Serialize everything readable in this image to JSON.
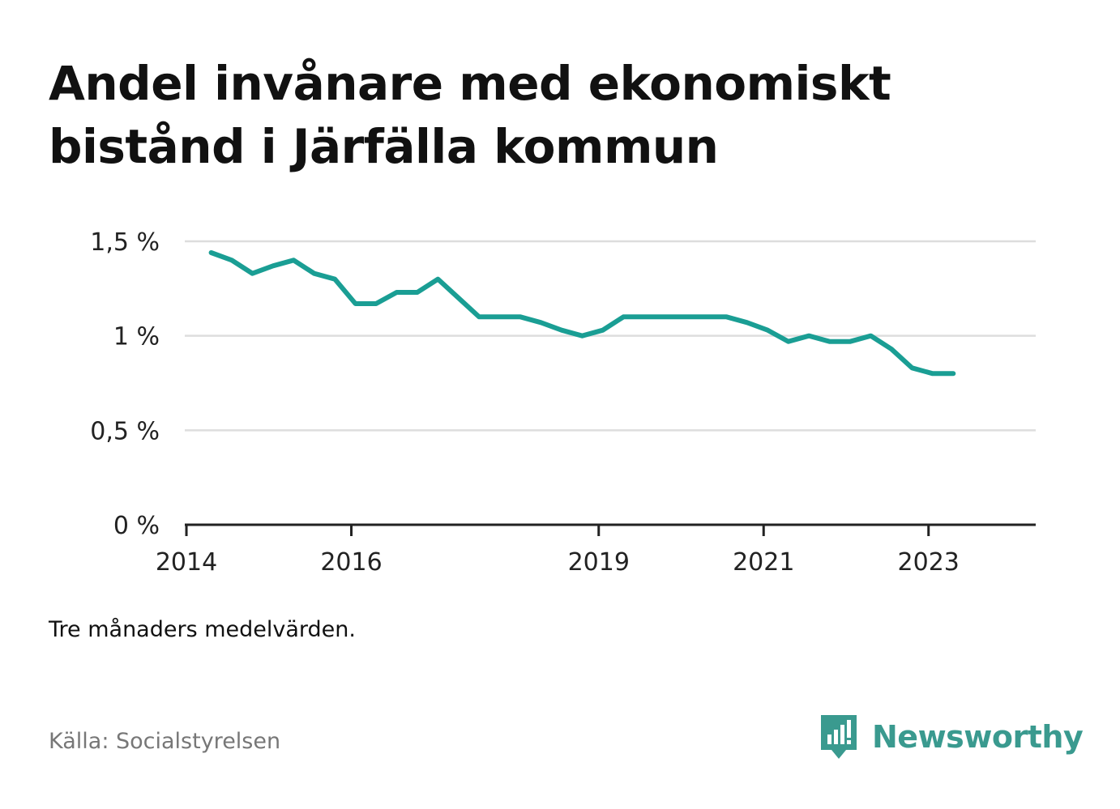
{
  "title": "Andel invånare med ekonomiskt bistånd i Järfälla kommun",
  "note": "Tre månaders medelvärden.",
  "source": "Källa: Socialstyrelsen",
  "brand": {
    "name": "Newsworthy",
    "logo_icon": "newsworthy-logo-icon"
  },
  "colors": {
    "line": "#1a9e94",
    "grid": "#dddddd",
    "axis": "#222222",
    "brand": "#3a9a8f"
  },
  "chart_data": {
    "type": "line",
    "title": "Andel invånare med ekonomiskt bistånd i Järfälla kommun",
    "xlabel": "",
    "ylabel": "",
    "x_tick_values": [
      2014.0,
      2016.0,
      2019.0,
      2021.0,
      2023.0
    ],
    "x_tick_labels": [
      "2014",
      "2016",
      "2019",
      "2021",
      "2023"
    ],
    "y_tick_values": [
      0,
      0.5,
      1,
      1.5
    ],
    "y_tick_labels": [
      "0 %",
      "0,5 %",
      "1 %",
      "1,5 %"
    ],
    "xlim": [
      2013.98,
      2024.3
    ],
    "ylim": [
      0,
      1.5
    ],
    "grid": true,
    "legend": "none",
    "series": [
      {
        "x": [
          2014.3,
          2014.55,
          2014.8,
          2015.05,
          2015.3,
          2015.55,
          2015.8,
          2016.05,
          2016.3,
          2016.55,
          2016.8,
          2017.05,
          2017.3,
          2017.55,
          2017.8,
          2018.05,
          2018.3,
          2018.55,
          2018.8,
          2019.05,
          2019.3,
          2019.55,
          2019.8,
          2020.05,
          2020.3,
          2020.55,
          2020.8,
          2021.05,
          2021.3,
          2021.55,
          2021.8,
          2022.05,
          2022.3,
          2022.55,
          2022.8,
          2023.05,
          2023.3
        ],
        "values": [
          1.44,
          1.4,
          1.33,
          1.37,
          1.4,
          1.33,
          1.3,
          1.17,
          1.17,
          1.23,
          1.23,
          1.3,
          1.2,
          1.1,
          1.1,
          1.1,
          1.07,
          1.03,
          1.0,
          1.03,
          1.1,
          1.1,
          1.1,
          1.1,
          1.1,
          1.1,
          1.07,
          1.03,
          0.97,
          1.0,
          0.97,
          0.97,
          1.0,
          0.93,
          0.83,
          0.8,
          0.8
        ]
      }
    ]
  }
}
